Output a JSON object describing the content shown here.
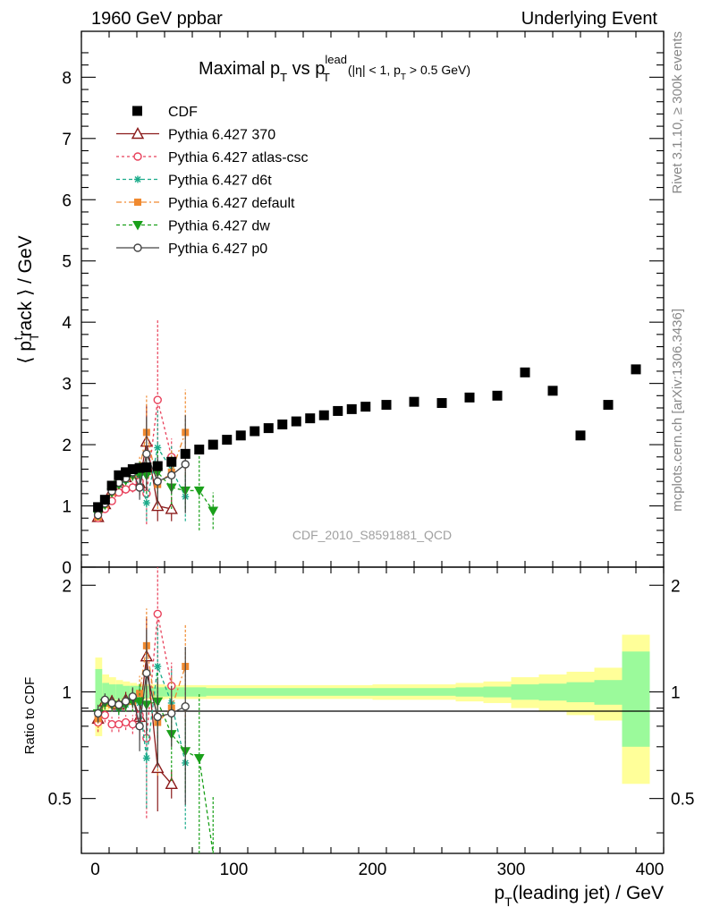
{
  "header": {
    "left": "1960 GeV ppbar",
    "right": "Underlying Event"
  },
  "side": {
    "rivet": "Rivet 3.1.10, ≥ 300k events",
    "mcplots": "mcplots.cern.ch [arXiv:1306.3436]"
  },
  "chart_data": {
    "type": "scatter",
    "title": "Maximal p_T vs p_T^lead (|η| < 1, p_T > 0.5 GeV)",
    "title_parts": {
      "main": "Maximal p",
      "sub1": "T",
      "vs": " vs p",
      "sup": "lead",
      "sub2": "T",
      "cut1": "(|η| < 1, p",
      "sub3": "T",
      "cut2": " > 0.5 GeV)"
    },
    "analysis_id": "CDF_2010_S8591881_QCD",
    "xlabel": "p_T(leading jet) / GeV",
    "xlabel_parts": {
      "p": "p",
      "sub": "T",
      "rest": "(leading jet) / GeV"
    },
    "ylabel": "⟨ p_T^track ⟩ / GeV",
    "ylabel_parts": {
      "open": "⟨ p",
      "sub": "T",
      "sup": "t",
      "rest": "rack ⟩ / GeV"
    },
    "ratio_ylabel": "Ratio to CDF",
    "xlim": [
      -10,
      410
    ],
    "ylim": [
      0,
      8.75
    ],
    "ratio_ylim": [
      0.35,
      2.25
    ],
    "x_ticks": [
      "0",
      "100",
      "200",
      "300",
      "400"
    ],
    "y_ticks": [
      "0",
      "1",
      "2",
      "3",
      "4",
      "5",
      "6",
      "7",
      "8"
    ],
    "ratio_ticks": [
      "0.5",
      "1",
      "2"
    ],
    "legend_position": "top-left",
    "cdf": {
      "name": "CDF",
      "x": [
        2,
        7,
        12,
        17,
        22,
        27,
        32,
        37,
        45,
        55,
        65,
        75,
        85,
        95,
        105,
        115,
        125,
        135,
        145,
        155,
        165,
        175,
        185,
        195,
        210,
        230,
        250,
        270,
        290,
        310,
        330,
        350,
        370,
        390
      ],
      "y": [
        0.98,
        1.1,
        1.33,
        1.5,
        1.55,
        1.6,
        1.62,
        1.63,
        1.65,
        1.72,
        1.85,
        1.92,
        2.0,
        2.08,
        2.15,
        2.22,
        2.27,
        2.33,
        2.38,
        2.43,
        2.48,
        2.55,
        2.58,
        2.62,
        2.65,
        2.7,
        2.68,
        2.77,
        2.8,
        3.18,
        2.88,
        2.15,
        2.65,
        3.23
      ]
    },
    "ratio_band": {
      "x_edges": [
        0,
        5,
        10,
        15,
        20,
        25,
        30,
        35,
        40,
        50,
        60,
        70,
        80,
        90,
        100,
        110,
        120,
        130,
        140,
        150,
        160,
        170,
        180,
        190,
        200,
        220,
        240,
        260,
        280,
        300,
        320,
        340,
        360,
        380,
        400
      ],
      "inner": [
        0.16,
        0.06,
        0.05,
        0.05,
        0.04,
        0.04,
        0.04,
        0.04,
        0.03,
        0.03,
        0.03,
        0.03,
        0.025,
        0.025,
        0.025,
        0.025,
        0.025,
        0.025,
        0.025,
        0.025,
        0.025,
        0.025,
        0.025,
        0.025,
        0.025,
        0.025,
        0.025,
        0.03,
        0.035,
        0.05,
        0.055,
        0.065,
        0.08,
        0.3
      ],
      "outer": [
        0.25,
        0.12,
        0.1,
        0.08,
        0.07,
        0.06,
        0.05,
        0.05,
        0.05,
        0.045,
        0.045,
        0.045,
        0.045,
        0.045,
        0.045,
        0.045,
        0.045,
        0.045,
        0.045,
        0.045,
        0.045,
        0.045,
        0.045,
        0.045,
        0.05,
        0.05,
        0.05,
        0.06,
        0.07,
        0.1,
        0.12,
        0.14,
        0.17,
        0.45
      ],
      "inner_color": "#9bfa9b",
      "outer_color": "#ffff99"
    },
    "series": [
      {
        "name": "Pythia 6.427 370",
        "color": "#8b1a1a",
        "marker": "triangle",
        "dash": "none",
        "x": [
          2,
          7,
          12,
          17,
          22,
          27,
          32,
          37,
          45,
          55
        ],
        "y": [
          0.82,
          1.03,
          1.25,
          1.38,
          1.47,
          1.53,
          1.37,
          2.05,
          1.0,
          0.95
        ],
        "err": [
          0.05,
          0.05,
          0.06,
          0.06,
          0.07,
          0.1,
          0.2,
          0.6,
          0.25,
          0.2
        ],
        "ratio": [
          0.84,
          0.94,
          0.94,
          0.92,
          0.95,
          0.96,
          0.85,
          1.26,
          0.61,
          0.55
        ],
        "ratio_err": [
          0.05,
          0.04,
          0.04,
          0.04,
          0.05,
          0.06,
          0.12,
          0.37,
          0.15,
          0.05
        ]
      },
      {
        "name": "Pythia 6.427 atlas-csc",
        "color": "#e8405a",
        "marker": "circle",
        "dash": "3,3",
        "x": [
          2,
          7,
          12,
          17,
          22,
          27,
          32,
          37,
          45,
          55
        ],
        "y": [
          0.8,
          0.95,
          1.08,
          1.22,
          1.27,
          1.3,
          1.4,
          1.2,
          2.73,
          1.8
        ],
        "err": [
          0.05,
          0.05,
          0.05,
          0.06,
          0.07,
          0.08,
          0.15,
          0.5,
          1.3,
          0.3
        ],
        "ratio": [
          0.82,
          0.86,
          0.81,
          0.81,
          0.82,
          0.81,
          0.86,
          0.74,
          1.66,
          1.04
        ],
        "ratio_err": [
          0.05,
          0.04,
          0.04,
          0.04,
          0.04,
          0.05,
          0.09,
          0.3,
          0.78,
          0.17
        ]
      },
      {
        "name": "Pythia 6.427 d6t",
        "color": "#1aab8a",
        "marker": "star",
        "dash": "4,3",
        "x": [
          2,
          7,
          12,
          17,
          22,
          27,
          32,
          37,
          45,
          55,
          65
        ],
        "y": [
          0.85,
          1.02,
          1.22,
          1.35,
          1.42,
          1.5,
          1.5,
          1.05,
          1.95,
          1.6,
          1.15
        ],
        "err": [
          0.05,
          0.05,
          0.06,
          0.06,
          0.07,
          0.09,
          0.2,
          0.3,
          0.6,
          0.4,
          0.4
        ],
        "ratio": [
          0.87,
          0.93,
          0.92,
          0.9,
          0.92,
          0.94,
          0.93,
          0.65,
          1.18,
          0.93,
          0.63
        ],
        "ratio_err": [
          0.05,
          0.04,
          0.04,
          0.04,
          0.04,
          0.06,
          0.12,
          0.18,
          0.37,
          0.23,
          0.22
        ]
      },
      {
        "name": "Pythia 6.427 default",
        "color": "#f08a30",
        "marker": "square",
        "dash": "6,3,2,3",
        "x": [
          2,
          7,
          12,
          17,
          22,
          27,
          32,
          37,
          45,
          55,
          65
        ],
        "y": [
          0.82,
          1.02,
          1.22,
          1.38,
          1.45,
          1.5,
          1.6,
          2.2,
          1.35,
          1.55,
          2.2
        ],
        "err": [
          0.05,
          0.05,
          0.06,
          0.06,
          0.07,
          0.09,
          0.2,
          0.6,
          0.4,
          0.35,
          0.7
        ],
        "ratio": [
          0.84,
          0.93,
          0.92,
          0.92,
          0.94,
          0.94,
          0.99,
          1.35,
          0.82,
          0.9,
          1.18
        ],
        "ratio_err": [
          0.05,
          0.04,
          0.04,
          0.04,
          0.04,
          0.06,
          0.12,
          0.37,
          0.24,
          0.2,
          0.38
        ]
      },
      {
        "name": "Pythia 6.427 dw",
        "color": "#1aa01a",
        "marker": "tri-down",
        "dash": "4,3",
        "x": [
          2,
          7,
          12,
          17,
          22,
          27,
          32,
          37,
          45,
          55,
          65,
          75,
          85
        ],
        "y": [
          0.85,
          1.02,
          1.22,
          1.35,
          1.42,
          1.5,
          1.52,
          1.5,
          1.55,
          1.3,
          1.25,
          1.25,
          0.92
        ],
        "err": [
          0.05,
          0.05,
          0.06,
          0.06,
          0.07,
          0.09,
          0.2,
          0.3,
          0.35,
          0.35,
          0.3,
          0.65,
          0.3
        ],
        "ratio": [
          0.87,
          0.93,
          0.92,
          0.9,
          0.92,
          0.94,
          0.94,
          0.92,
          0.94,
          0.76,
          0.68,
          0.65,
          0.35
        ],
        "ratio_err": [
          0.05,
          0.04,
          0.04,
          0.04,
          0.04,
          0.06,
          0.12,
          0.18,
          0.2,
          0.2,
          0.16,
          0.34,
          0.16
        ]
      },
      {
        "name": "Pythia 6.427 p0",
        "color": "#444444",
        "marker": "circle",
        "dash": "none",
        "x": [
          2,
          7,
          12,
          17,
          22,
          27,
          32,
          37,
          45,
          55,
          65
        ],
        "y": [
          0.85,
          1.04,
          1.24,
          1.38,
          1.45,
          1.55,
          1.3,
          1.85,
          1.4,
          1.5,
          1.68
        ],
        "err": [
          0.05,
          0.05,
          0.06,
          0.06,
          0.07,
          0.1,
          0.2,
          0.6,
          0.4,
          0.3,
          0.8
        ],
        "ratio": [
          0.87,
          0.95,
          0.93,
          0.92,
          0.94,
          0.97,
          0.8,
          1.13,
          0.85,
          0.87,
          0.91
        ],
        "ratio_err": [
          0.05,
          0.04,
          0.04,
          0.04,
          0.04,
          0.06,
          0.12,
          0.37,
          0.24,
          0.17,
          0.43
        ]
      }
    ]
  }
}
